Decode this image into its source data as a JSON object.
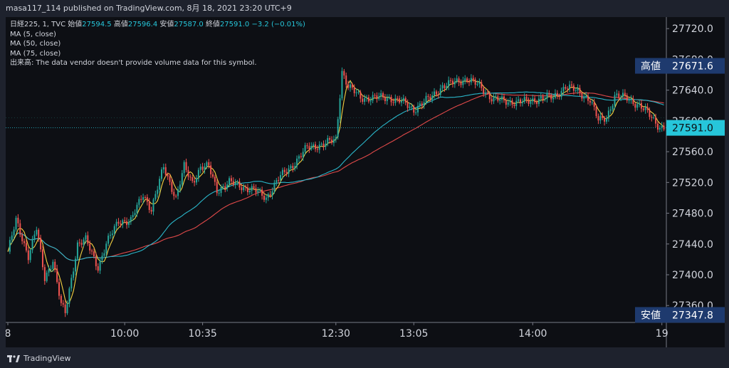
{
  "header": {
    "publish_text": "masa117_114 published on TradingView.com, 8月 18, 2021 23:20 UTC+9"
  },
  "legend": {
    "symbol": "日経225, 1, TVC",
    "open_label": "始値",
    "open_value": "27594.5",
    "high_label": "高値",
    "high_value": "27596.4",
    "low_label": "安値",
    "low_value": "27587.0",
    "close_label": "終値",
    "close_value": "27591.0",
    "change": "−3.2 (−0.01%)",
    "ma_lines": [
      "MA (5, close)",
      "MA (50, close)",
      "MA (75, close)"
    ],
    "volume_note": "出来高: The data vendor doesn't provide volume data for this symbol."
  },
  "footer": {
    "brand": "TradingView"
  },
  "colors": {
    "up": "#26a69a",
    "down": "#ef5350",
    "ma5": "#f5d142",
    "ma50": "#2ab6c9",
    "ma75": "#e04949",
    "axis_text": "#d1d4dc",
    "price_label_bg": "#1e3a6e",
    "last_label_bg": "#26c6da"
  },
  "chart_data": {
    "type": "candlestick",
    "x_tick_labels": [
      "8",
      "10:00",
      "10:35",
      "12:30",
      "13:05",
      "14:00",
      "19"
    ],
    "y_ticks": [
      27360,
      27400,
      27440,
      27480,
      27520,
      27560,
      27600,
      27640,
      27680,
      27720
    ],
    "y_tick_labels": [
      "27360.0",
      "27400.0",
      "27440.0",
      "27480.0",
      "27520.0",
      "27560.0",
      "27600.0",
      "27640.0",
      "27680.0",
      "27720.0"
    ],
    "ylim": [
      27338,
      27735
    ],
    "price_labels": [
      {
        "tag": "高値",
        "value": "27671.6"
      },
      {
        "tag": "",
        "value": "27591.0"
      },
      {
        "tag": "安値",
        "value": "27347.8"
      }
    ],
    "high": 27671.6,
    "low": 27347.8,
    "last": 27591.0,
    "anchors": [
      [
        0,
        27430
      ],
      [
        4,
        27470
      ],
      [
        10,
        27425
      ],
      [
        14,
        27460
      ],
      [
        18,
        27395
      ],
      [
        22,
        27420
      ],
      [
        26,
        27360
      ],
      [
        28,
        27350
      ],
      [
        34,
        27440
      ],
      [
        38,
        27445
      ],
      [
        44,
        27410
      ],
      [
        48,
        27440
      ],
      [
        54,
        27470
      ],
      [
        60,
        27470
      ],
      [
        66,
        27505
      ],
      [
        70,
        27485
      ],
      [
        76,
        27540
      ],
      [
        82,
        27500
      ],
      [
        86,
        27540
      ],
      [
        90,
        27520
      ],
      [
        94,
        27540
      ],
      [
        98,
        27540
      ],
      [
        102,
        27510
      ],
      [
        108,
        27520
      ],
      [
        114,
        27515
      ],
      [
        120,
        27510
      ],
      [
        126,
        27500
      ],
      [
        132,
        27525
      ],
      [
        138,
        27540
      ],
      [
        146,
        27565
      ],
      [
        154,
        27570
      ],
      [
        160,
        27575
      ],
      [
        163,
        27665
      ],
      [
        166,
        27645
      ],
      [
        172,
        27630
      ],
      [
        180,
        27630
      ],
      [
        186,
        27630
      ],
      [
        192,
        27625
      ],
      [
        198,
        27615
      ],
      [
        206,
        27630
      ],
      [
        212,
        27645
      ],
      [
        218,
        27650
      ],
      [
        224,
        27655
      ],
      [
        230,
        27645
      ],
      [
        236,
        27630
      ],
      [
        242,
        27625
      ],
      [
        248,
        27625
      ],
      [
        254,
        27625
      ],
      [
        260,
        27630
      ],
      [
        266,
        27630
      ],
      [
        272,
        27645
      ],
      [
        278,
        27638
      ],
      [
        284,
        27628
      ],
      [
        288,
        27600
      ],
      [
        292,
        27605
      ],
      [
        296,
        27632
      ],
      [
        302,
        27630
      ],
      [
        308,
        27620
      ],
      [
        314,
        27605
      ],
      [
        318,
        27592
      ],
      [
        320,
        27591
      ]
    ]
  }
}
